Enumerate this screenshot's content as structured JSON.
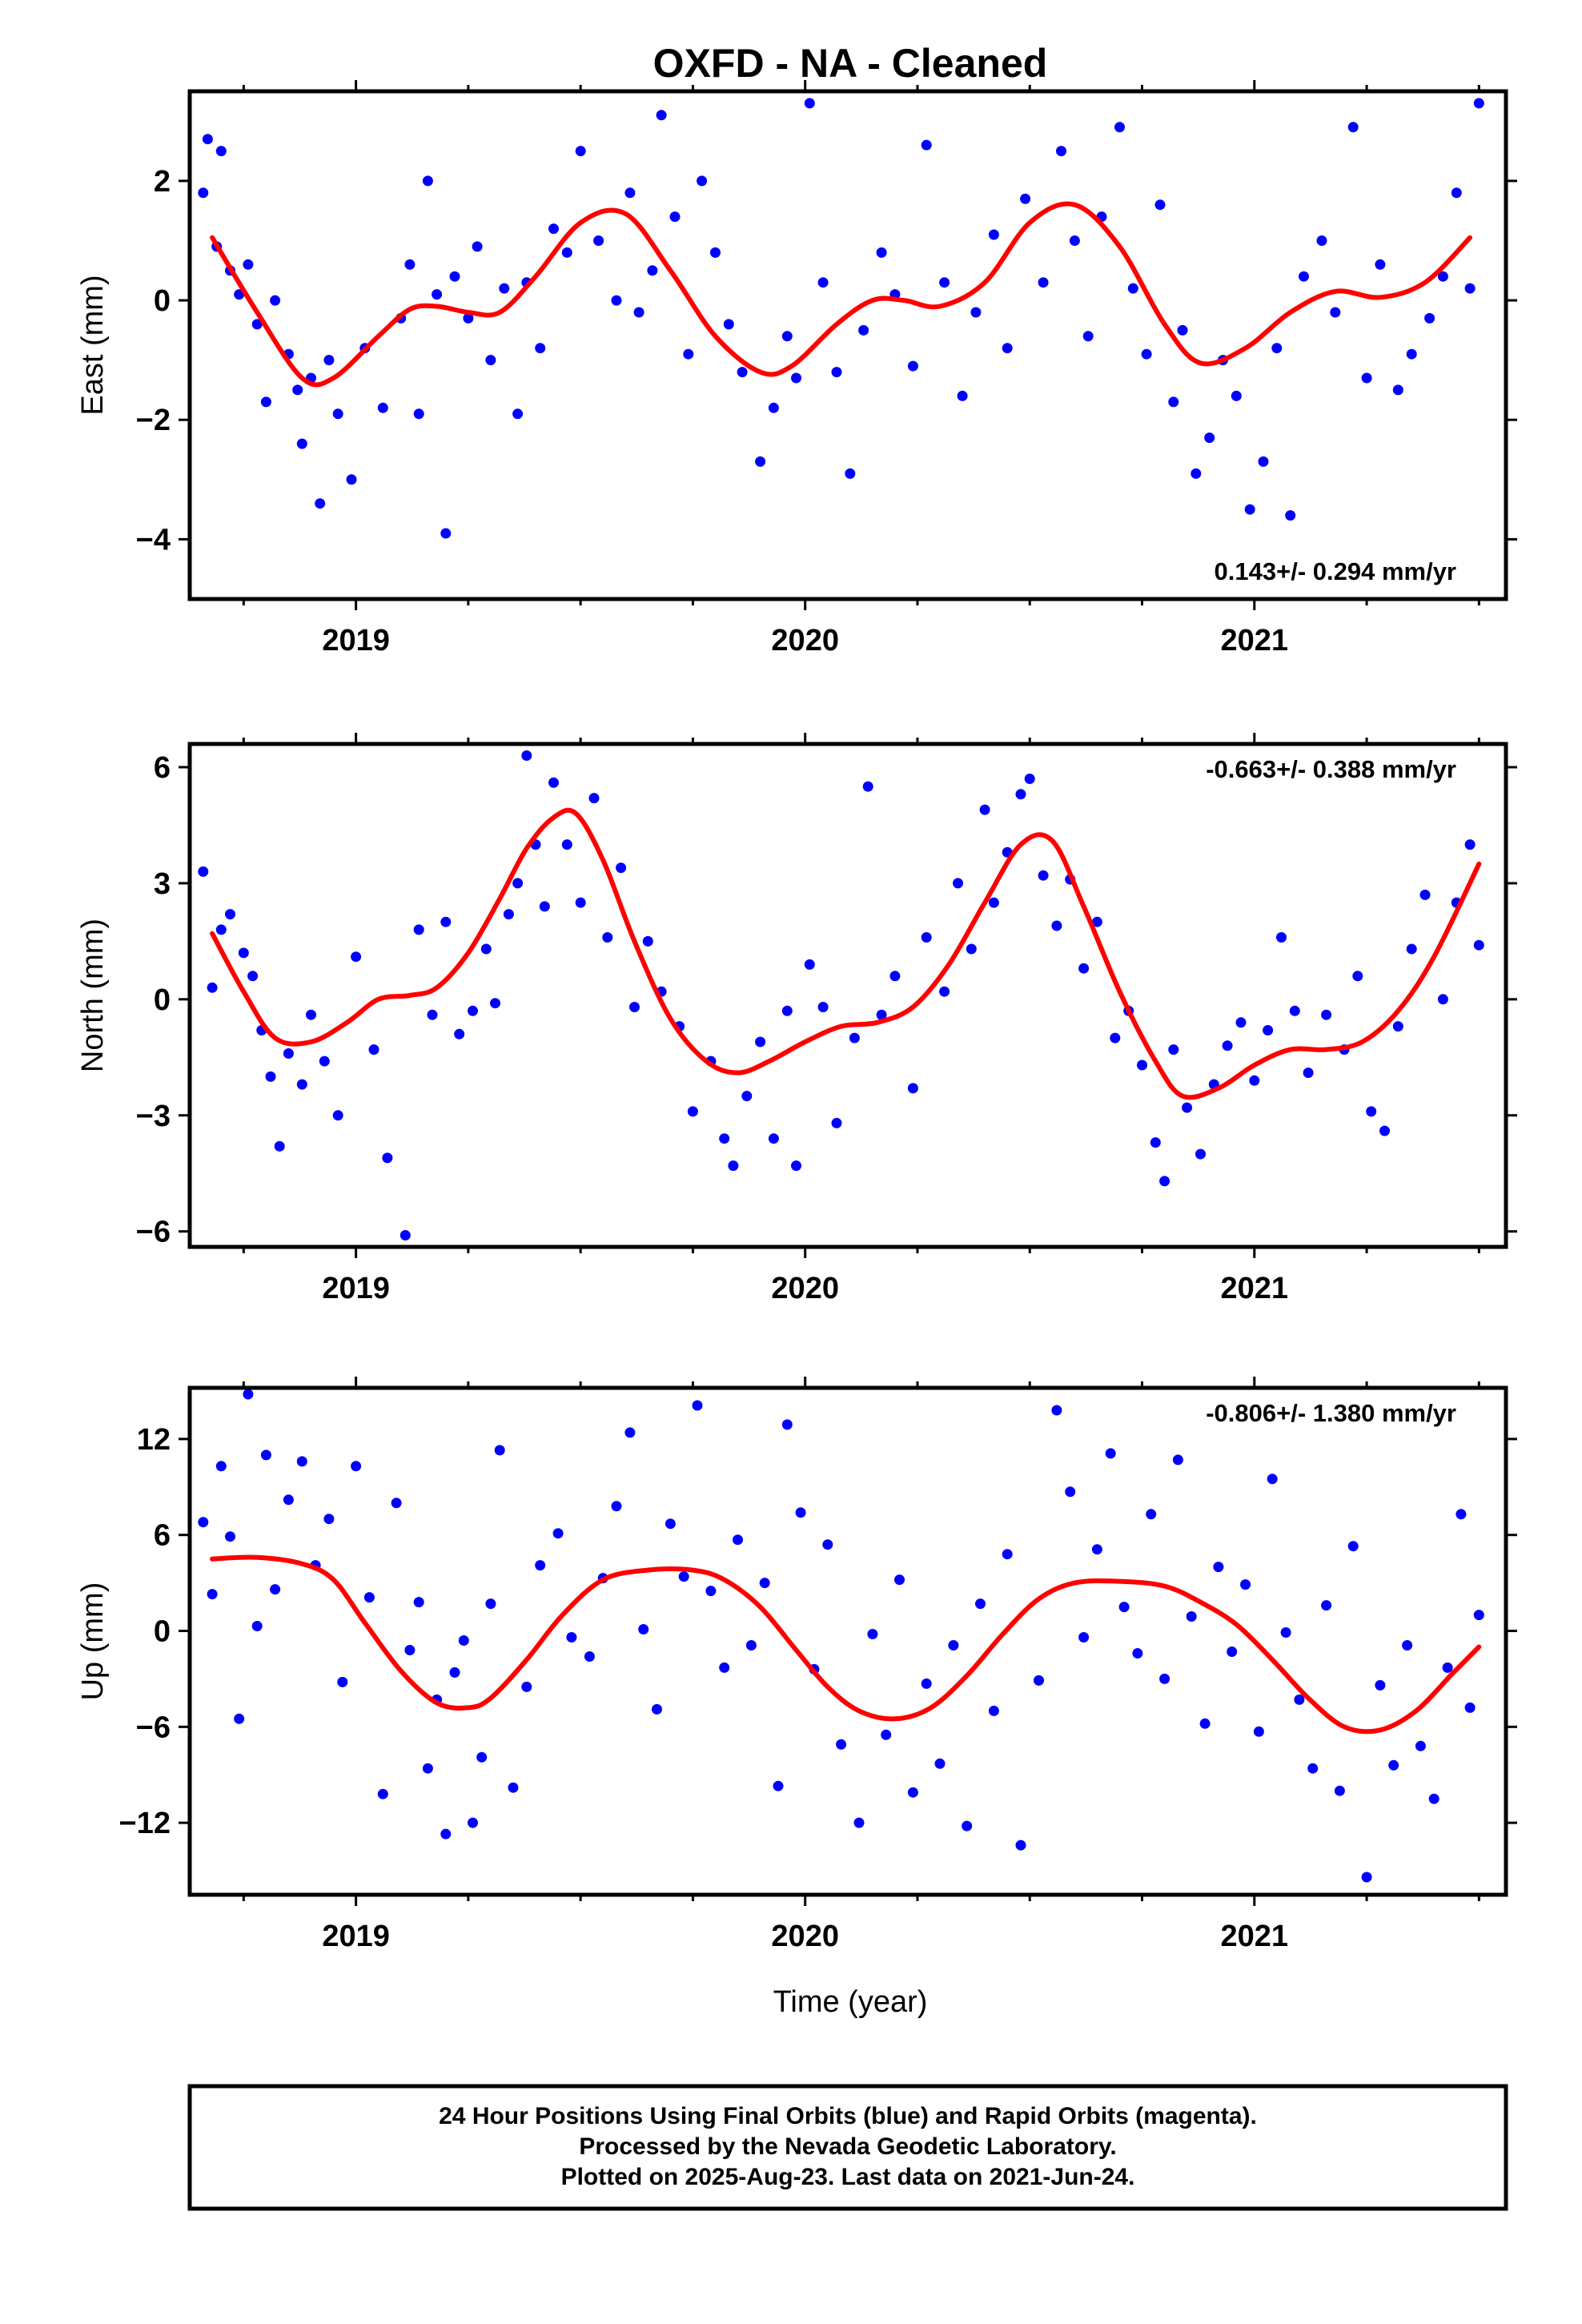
{
  "title": "OXFD  - NA - Cleaned",
  "colors": {
    "final_orbits": "#0000ff",
    "fit": "#ff0000",
    "frame": "#000000"
  },
  "chart_data": [
    {
      "type": "scatter",
      "ylabel": "East (mm)",
      "xlim": [
        2018.63,
        2021.56
      ],
      "ylim": [
        -5.0,
        3.5
      ],
      "yticks": [
        2,
        0,
        -2,
        -4
      ],
      "ytick_labels": [
        "2",
        "0",
        "−2",
        "−4"
      ],
      "xticks": [
        2019,
        2020,
        2021
      ],
      "xtick_labels": [
        "2019",
        "2020",
        "2021"
      ],
      "rate": "0.143+/- 0.294 mm/yr",
      "rate_position": "bottom-right",
      "fit": {
        "x": [
          2018.68,
          2018.78,
          2018.88,
          2018.95,
          2019.05,
          2019.12,
          2019.18,
          2019.25,
          2019.32,
          2019.4,
          2019.5,
          2019.6,
          2019.7,
          2019.8,
          2019.9,
          2019.97,
          2020.07,
          2020.15,
          2020.22,
          2020.3,
          2020.4,
          2020.5,
          2020.6,
          2020.7,
          2020.8,
          2020.88,
          2020.98,
          2021.08,
          2021.18,
          2021.28,
          2021.38,
          2021.48
        ],
        "y": [
          1.05,
          -0.2,
          -1.3,
          -1.3,
          -0.6,
          -0.15,
          -0.1,
          -0.2,
          -0.2,
          0.4,
          1.3,
          1.45,
          0.5,
          -0.6,
          -1.2,
          -1.1,
          -0.4,
          0.0,
          0.0,
          -0.1,
          0.3,
          1.3,
          1.6,
          0.9,
          -0.4,
          -1.05,
          -0.8,
          -0.2,
          0.15,
          0.05,
          0.3,
          1.05
        ]
      },
      "points": {
        "x": [
          2018.66,
          2018.67,
          2018.69,
          2018.7,
          2018.72,
          2018.74,
          2018.76,
          2018.78,
          2018.8,
          2018.82,
          2018.85,
          2018.87,
          2018.88,
          2018.9,
          2018.92,
          2018.94,
          2018.96,
          2018.99,
          2019.02,
          2019.06,
          2019.1,
          2019.12,
          2019.14,
          2019.16,
          2019.18,
          2019.2,
          2019.22,
          2019.25,
          2019.27,
          2019.3,
          2019.33,
          2019.36,
          2019.38,
          2019.41,
          2019.44,
          2019.47,
          2019.5,
          2019.54,
          2019.58,
          2019.61,
          2019.63,
          2019.66,
          2019.68,
          2019.71,
          2019.74,
          2019.77,
          2019.8,
          2019.83,
          2019.86,
          2019.9,
          2019.93,
          2019.96,
          2019.98,
          2020.01,
          2020.04,
          2020.07,
          2020.1,
          2020.13,
          2020.17,
          2020.2,
          2020.24,
          2020.27,
          2020.31,
          2020.35,
          2020.38,
          2020.42,
          2020.45,
          2020.49,
          2020.53,
          2020.57,
          2020.6,
          2020.63,
          2020.66,
          2020.7,
          2020.73,
          2020.76,
          2020.79,
          2020.82,
          2020.84,
          2020.87,
          2020.9,
          2020.93,
          2020.96,
          2020.99,
          2021.02,
          2021.05,
          2021.08,
          2021.11,
          2021.15,
          2021.18,
          2021.22,
          2021.25,
          2021.28,
          2021.32,
          2021.35,
          2021.39,
          2021.42,
          2021.45,
          2021.48,
          2021.5
        ],
        "y": [
          1.8,
          2.7,
          0.9,
          2.5,
          0.5,
          0.1,
          0.6,
          -0.4,
          -1.7,
          0.0,
          -0.9,
          -1.5,
          -2.4,
          -1.3,
          -3.4,
          -1.0,
          -1.9,
          -3.0,
          -0.8,
          -1.8,
          -0.3,
          0.6,
          -1.9,
          2.0,
          0.1,
          -3.9,
          0.4,
          -0.3,
          0.9,
          -1.0,
          0.2,
          -1.9,
          0.3,
          -0.8,
          1.2,
          0.8,
          2.5,
          1.0,
          0.0,
          1.8,
          -0.2,
          0.5,
          3.1,
          1.4,
          -0.9,
          2.0,
          0.8,
          -0.4,
          -1.2,
          -2.7,
          -1.8,
          -0.6,
          -1.3,
          3.3,
          0.3,
          -1.2,
          -2.9,
          -0.5,
          0.8,
          0.1,
          -1.1,
          2.6,
          0.3,
          -1.6,
          -0.2,
          1.1,
          -0.8,
          1.7,
          0.3,
          2.5,
          1.0,
          -0.6,
          1.4,
          2.9,
          0.2,
          -0.9,
          1.6,
          -1.7,
          -0.5,
          -2.9,
          -2.3,
          -1.0,
          -1.6,
          -3.5,
          -2.7,
          -0.8,
          -3.6,
          0.4,
          1.0,
          -0.2,
          2.9,
          -1.3,
          0.6,
          -1.5,
          -0.9,
          -0.3,
          0.4,
          1.8,
          0.2,
          3.3
        ]
      }
    },
    {
      "type": "scatter",
      "ylabel": "North (mm)",
      "xlim": [
        2018.63,
        2021.56
      ],
      "ylim": [
        -6.4,
        6.6
      ],
      "yticks": [
        6,
        3,
        0,
        -3,
        -6
      ],
      "ytick_labels": [
        "6",
        "3",
        "0",
        "−3",
        "−6"
      ],
      "xticks": [
        2019,
        2020,
        2021
      ],
      "xtick_labels": [
        "2019",
        "2020",
        "2021"
      ],
      "rate": "-0.663+/- 0.388 mm/yr",
      "rate_position": "top-right",
      "fit": {
        "x": [
          2018.68,
          2018.75,
          2018.82,
          2018.9,
          2018.98,
          2019.05,
          2019.12,
          2019.18,
          2019.25,
          2019.32,
          2019.38,
          2019.44,
          2019.49,
          2019.55,
          2019.62,
          2019.7,
          2019.78,
          2019.85,
          2019.92,
          2020.0,
          2020.08,
          2020.16,
          2020.24,
          2020.32,
          2020.4,
          2020.48,
          2020.55,
          2020.62,
          2020.7,
          2020.78,
          2020.84,
          2020.92,
          2021.0,
          2021.08,
          2021.16,
          2021.24,
          2021.32,
          2021.4,
          2021.5
        ],
        "y": [
          1.7,
          0.2,
          -1.0,
          -1.1,
          -0.6,
          0.0,
          0.1,
          0.3,
          1.2,
          2.6,
          3.9,
          4.7,
          4.8,
          3.6,
          1.5,
          -0.5,
          -1.6,
          -1.9,
          -1.6,
          -1.1,
          -0.7,
          -0.6,
          -0.2,
          0.9,
          2.5,
          4.0,
          4.1,
          2.4,
          0.2,
          -1.6,
          -2.5,
          -2.3,
          -1.7,
          -1.3,
          -1.3,
          -1.1,
          -0.3,
          1.1,
          3.5
        ]
      },
      "points": {
        "x": [
          2018.66,
          2018.68,
          2018.7,
          2018.72,
          2018.75,
          2018.77,
          2018.79,
          2018.81,
          2018.83,
          2018.85,
          2018.88,
          2018.9,
          2018.93,
          2018.96,
          2019.0,
          2019.04,
          2019.07,
          2019.11,
          2019.14,
          2019.17,
          2019.2,
          2019.23,
          2019.26,
          2019.29,
          2019.31,
          2019.34,
          2019.36,
          2019.38,
          2019.4,
          2019.42,
          2019.44,
          2019.47,
          2019.5,
          2019.53,
          2019.56,
          2019.59,
          2019.62,
          2019.65,
          2019.68,
          2019.72,
          2019.75,
          2019.79,
          2019.82,
          2019.84,
          2019.87,
          2019.9,
          2019.93,
          2019.96,
          2019.98,
          2020.01,
          2020.04,
          2020.07,
          2020.11,
          2020.14,
          2020.17,
          2020.2,
          2020.24,
          2020.27,
          2020.31,
          2020.34,
          2020.37,
          2020.4,
          2020.42,
          2020.45,
          2020.48,
          2020.5,
          2020.53,
          2020.56,
          2020.59,
          2020.62,
          2020.65,
          2020.69,
          2020.72,
          2020.75,
          2020.78,
          2020.8,
          2020.82,
          2020.85,
          2020.88,
          2020.91,
          2020.94,
          2020.97,
          2021.0,
          2021.03,
          2021.06,
          2021.09,
          2021.12,
          2021.16,
          2021.2,
          2021.23,
          2021.26,
          2021.29,
          2021.32,
          2021.35,
          2021.38,
          2021.42,
          2021.45,
          2021.48,
          2021.5
        ],
        "y": [
          3.3,
          0.3,
          1.8,
          2.2,
          1.2,
          0.6,
          -0.8,
          -2.0,
          -3.8,
          -1.4,
          -2.2,
          -0.4,
          -1.6,
          -3.0,
          1.1,
          -1.3,
          -4.1,
          -6.1,
          1.8,
          -0.4,
          2.0,
          -0.9,
          -0.3,
          1.3,
          -0.1,
          2.2,
          3.0,
          6.3,
          4.0,
          2.4,
          5.6,
          4.0,
          2.5,
          5.2,
          1.6,
          3.4,
          -0.2,
          1.5,
          0.2,
          -0.7,
          -2.9,
          -1.6,
          -3.6,
          -4.3,
          -2.5,
          -1.1,
          -3.6,
          -0.3,
          -4.3,
          0.9,
          -0.2,
          -3.2,
          -1.0,
          5.5,
          -0.4,
          0.6,
          -2.3,
          1.6,
          0.2,
          3.0,
          1.3,
          4.9,
          2.5,
          3.8,
          5.3,
          5.7,
          3.2,
          1.9,
          3.1,
          0.8,
          2.0,
          -1.0,
          -0.3,
          -1.7,
          -3.7,
          -4.7,
          -1.3,
          -2.8,
          -4.0,
          -2.2,
          -1.2,
          -0.6,
          -2.1,
          -0.8,
          1.6,
          -0.3,
          -1.9,
          -0.4,
          -1.3,
          0.6,
          -2.9,
          -3.4,
          -0.7,
          1.3,
          2.7,
          0.0,
          2.5,
          4.0,
          1.4
        ]
      }
    },
    {
      "type": "scatter",
      "ylabel": "Up (mm)",
      "xlabel": "Time (year)",
      "xlim": [
        2018.63,
        2021.56
      ],
      "ylim": [
        -16.5,
        15.2
      ],
      "yticks": [
        12,
        6,
        0,
        -6,
        -12
      ],
      "ytick_labels": [
        "12",
        "6",
        "0",
        "−6",
        "−12"
      ],
      "xticks": [
        2019,
        2020,
        2021
      ],
      "xtick_labels": [
        "2019",
        "2020",
        "2021"
      ],
      "rate": "-0.806+/- 1.380 mm/yr",
      "rate_position": "top-right",
      "fit": {
        "x": [
          2018.68,
          2018.78,
          2018.88,
          2018.95,
          2019.02,
          2019.1,
          2019.18,
          2019.25,
          2019.3,
          2019.38,
          2019.46,
          2019.55,
          2019.65,
          2019.75,
          2019.82,
          2019.9,
          2019.98,
          2020.05,
          2020.12,
          2020.2,
          2020.28,
          2020.36,
          2020.44,
          2020.52,
          2020.6,
          2020.7,
          2020.8,
          2020.88,
          2020.96,
          2021.04,
          2021.12,
          2021.2,
          2021.28,
          2021.36,
          2021.44,
          2021.5
        ],
        "y": [
          4.5,
          4.6,
          4.2,
          3.2,
          0.5,
          -2.5,
          -4.5,
          -4.8,
          -4.2,
          -1.8,
          1.0,
          3.2,
          3.8,
          3.8,
          3.2,
          1.5,
          -1.2,
          -3.5,
          -5.0,
          -5.5,
          -4.8,
          -2.8,
          -0.2,
          2.0,
          3.0,
          3.1,
          2.8,
          1.8,
          0.4,
          -1.8,
          -4.2,
          -6.0,
          -6.2,
          -5.0,
          -2.7,
          -1.0
        ]
      },
      "points": {
        "x": [
          2018.66,
          2018.68,
          2018.7,
          2018.72,
          2018.74,
          2018.76,
          2018.78,
          2018.8,
          2018.82,
          2018.85,
          2018.88,
          2018.91,
          2018.94,
          2018.97,
          2019.0,
          2019.03,
          2019.06,
          2019.09,
          2019.12,
          2019.14,
          2019.16,
          2019.18,
          2019.2,
          2019.22,
          2019.24,
          2019.26,
          2019.28,
          2019.3,
          2019.32,
          2019.35,
          2019.38,
          2019.41,
          2019.45,
          2019.48,
          2019.52,
          2019.55,
          2019.58,
          2019.61,
          2019.64,
          2019.67,
          2019.7,
          2019.73,
          2019.76,
          2019.79,
          2019.82,
          2019.85,
          2019.88,
          2019.91,
          2019.94,
          2019.96,
          2019.99,
          2020.02,
          2020.05,
          2020.08,
          2020.12,
          2020.15,
          2020.18,
          2020.21,
          2020.24,
          2020.27,
          2020.3,
          2020.33,
          2020.36,
          2020.39,
          2020.42,
          2020.45,
          2020.48,
          2020.52,
          2020.56,
          2020.59,
          2020.62,
          2020.65,
          2020.68,
          2020.71,
          2020.74,
          2020.77,
          2020.8,
          2020.83,
          2020.86,
          2020.89,
          2020.92,
          2020.95,
          2020.98,
          2021.01,
          2021.04,
          2021.07,
          2021.1,
          2021.13,
          2021.16,
          2021.19,
          2021.22,
          2021.25,
          2021.28,
          2021.31,
          2021.34,
          2021.37,
          2021.4,
          2021.43,
          2021.46,
          2021.48,
          2021.5
        ],
        "y": [
          6.8,
          2.3,
          10.3,
          5.9,
          -5.5,
          14.8,
          0.3,
          11.0,
          2.6,
          8.2,
          10.6,
          4.1,
          7.0,
          -3.2,
          10.3,
          2.1,
          -10.2,
          8.0,
          -1.2,
          1.8,
          -8.6,
          -4.3,
          -12.7,
          -2.6,
          -0.6,
          -12.0,
          -7.9,
          1.7,
          11.3,
          -9.8,
          -3.5,
          4.1,
          6.1,
          -0.4,
          -1.6,
          3.3,
          7.8,
          12.4,
          0.1,
          -4.9,
          6.7,
          3.4,
          14.1,
          2.5,
          -2.3,
          5.7,
          -0.9,
          3.0,
          -9.7,
          12.9,
          7.4,
          -2.4,
          5.4,
          -7.1,
          -12.0,
          -0.2,
          -6.5,
          3.2,
          -10.1,
          -3.3,
          -8.3,
          -0.9,
          -12.2,
          1.7,
          -5.0,
          4.8,
          -13.4,
          -3.1,
          13.8,
          8.7,
          -0.4,
          5.1,
          11.1,
          1.5,
          -1.4,
          7.3,
          -3.0,
          10.7,
          0.9,
          -5.8,
          4.0,
          -1.3,
          2.9,
          -6.3,
          9.5,
          -0.1,
          -4.3,
          -8.6,
          1.6,
          -10.0,
          5.3,
          -15.4,
          -3.4,
          -8.4,
          -0.9,
          -7.2,
          -10.5,
          -2.3,
          7.3,
          -4.8,
          1.0
        ]
      }
    }
  ],
  "footer": {
    "lines": [
      "24 Hour Positions Using Final Orbits (blue) and Rapid Orbits (magenta).",
      "Processed by the Nevada Geodetic Laboratory.",
      "Plotted on 2025-Aug-23. Last data on 2021-Jun-24."
    ]
  }
}
